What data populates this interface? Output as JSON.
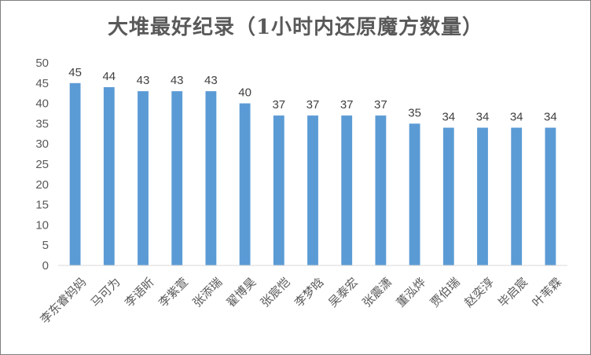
{
  "chart_data": {
    "type": "bar",
    "title": "大堆最好纪录（1小时内还原魔方数量）",
    "xlabel": "",
    "ylabel": "",
    "ylim": [
      0,
      50
    ],
    "yticks": [
      0,
      5,
      10,
      15,
      20,
      25,
      30,
      35,
      40,
      45,
      50
    ],
    "grid": false,
    "legend": "none",
    "bar_color": "#5b9bd5",
    "categories": [
      "李东睿妈妈",
      "马可为",
      "李语昕",
      "李紫萱",
      "张添瑞",
      "翟博昊",
      "张宸恺",
      "李梦晗",
      "吴泰宏",
      "张震潇",
      "董泓烨",
      "贾伯瑞",
      "赵奕淳",
      "毕启宸",
      "叶苇霖"
    ],
    "values": [
      45,
      44,
      43,
      43,
      43,
      40,
      37,
      37,
      37,
      37,
      35,
      34,
      34,
      34,
      34
    ]
  }
}
